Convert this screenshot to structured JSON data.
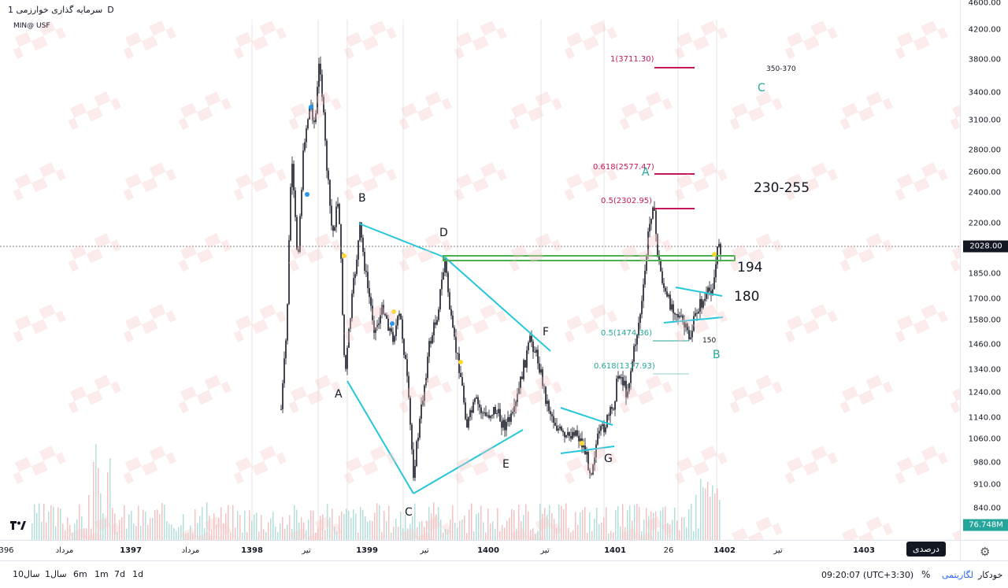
{
  "legend": {
    "title": "سرمایه گذاری خوارزمی",
    "timeframe": "1D",
    "symbol_line": "MIN@ USF"
  },
  "price_scale": {
    "ticks": [
      "4600.00",
      "4200.00",
      "3800.00",
      "3400.00",
      "3100.00",
      "2800.00",
      "2600.00",
      "2400.00",
      "2200.00",
      "1850.00",
      "1700.00",
      "1580.00",
      "1460.00",
      "1340.00",
      "1240.00",
      "1140.00",
      "1060.00",
      "980.00",
      "910.00",
      "840.00"
    ],
    "last_price": "2028.00",
    "volume_label": "76.748M",
    "last_price_color": "#131722",
    "volume_color": "#26a69a"
  },
  "time_axis": {
    "labels": [
      "396",
      "مرداد",
      "1397",
      "مرداد",
      "1398",
      "تیر",
      "1399",
      "تیر",
      "1400",
      "تیر",
      "1401",
      "26",
      "1402",
      "تیر",
      "1403"
    ]
  },
  "settings": {
    "icon": "gear-icon",
    "tooltip": "درصدی"
  },
  "bottom_bar": {
    "ranges": [
      "10سال",
      "1سال",
      "6m",
      "1m",
      "7d",
      "1d"
    ],
    "clock": "09:20:07 (UTC+3:30)",
    "percent_label": "%",
    "log_label": "لگاریتمی",
    "auto_label": "خودکار"
  },
  "annotations": {
    "wave_labels": [
      "A",
      "B",
      "C",
      "D",
      "E",
      "F",
      "G"
    ],
    "fib_1": "1(3711.30)",
    "fib_0618_up": "0.618(2577.47)",
    "fib_05_up": "0.5(2302.95)",
    "fib_05_low": "0.5(1474.36)",
    "fib_0618_low": "0.618(1317.93)",
    "target_range": "350-370",
    "target_range2": "230-255",
    "level_194": "194",
    "level_180": "180",
    "level_150": "150",
    "wave_A_green": "A",
    "wave_B_green": "B",
    "wave_C_green": "C"
  },
  "colors": {
    "up": "#26a69a",
    "down": "#ef5350",
    "trendline": "#26c6da",
    "support": "#4caf50",
    "fib": "#c2185b"
  },
  "chart_data": {
    "type": "candlestick",
    "title": "سرمایه گذاری خوارزمی",
    "x": [
      "1397",
      "1398",
      "1399",
      "1400",
      "1401",
      "1402"
    ],
    "close_path_y": [
      1200,
      2900,
      3500,
      2000,
      1250,
      1800,
      900,
      1500,
      1950,
      1050,
      1300,
      1460,
      1000,
      1060,
      2350,
      1700,
      1450,
      2028
    ],
    "ylim": [
      840,
      4600
    ],
    "last_price": 2028.0,
    "volume_last": "76.748M"
  }
}
